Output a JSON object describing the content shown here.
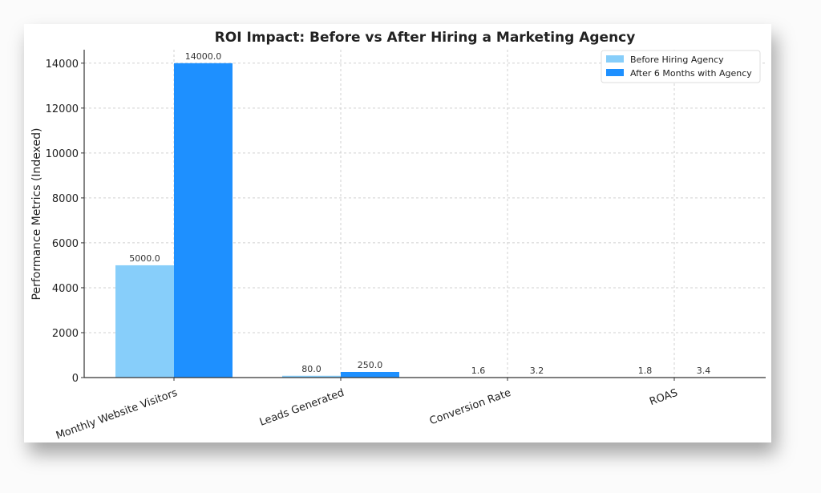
{
  "chart_data": {
    "type": "bar",
    "title": "ROI Impact: Before vs After Hiring a Marketing Agency",
    "xlabel": "",
    "ylabel": "Performance Metrics (Indexed)",
    "categories": [
      "Monthly Website Visitors",
      "Leads Generated",
      "Conversion Rate",
      "ROAS"
    ],
    "series": [
      {
        "name": "Before Hiring Agency",
        "color": "#87cefa",
        "values": [
          5000.0,
          80.0,
          1.6,
          1.8
        ],
        "labels": [
          "5000.0",
          "80.0",
          "1.6",
          "1.8"
        ]
      },
      {
        "name": "After 6 Months with Agency",
        "color": "#1e90ff",
        "values": [
          14000.0,
          250.0,
          3.2,
          3.4
        ],
        "labels": [
          "14000.0",
          "250.0",
          "3.2",
          "3.4"
        ]
      }
    ],
    "yticks": [
      0,
      2000,
      4000,
      6000,
      8000,
      10000,
      12000,
      14000
    ],
    "ytick_labels": [
      "0",
      "2000",
      "4000",
      "6000",
      "8000",
      "10000",
      "12000",
      "14000"
    ],
    "ylim": [
      0,
      14600
    ],
    "grid": true,
    "legend_position": "top-right"
  }
}
